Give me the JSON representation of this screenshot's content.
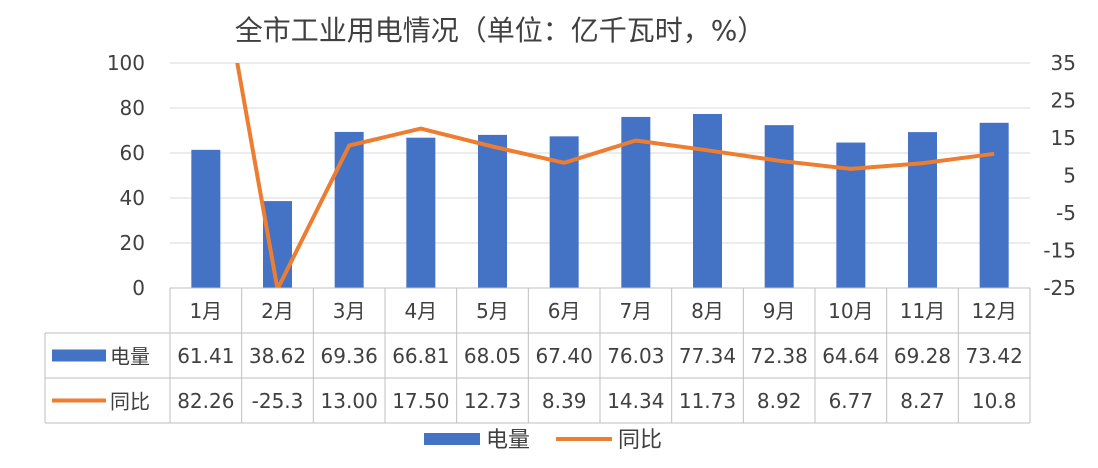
{
  "chart_data": {
    "type": "bar",
    "title": "全市工业用电情况（单位：亿千瓦时，%）",
    "categories": [
      "1月",
      "2月",
      "3月",
      "4月",
      "5月",
      "6月",
      "7月",
      "8月",
      "9月",
      "10月",
      "11月",
      "12月"
    ],
    "series": [
      {
        "name": "电量",
        "type": "bar",
        "axis": "left",
        "color": "#4472C4",
        "values": [
          61.41,
          38.62,
          69.36,
          66.81,
          68.05,
          67.4,
          76.03,
          77.34,
          72.38,
          64.64,
          69.28,
          73.42
        ],
        "labels": [
          "61.41",
          "38.62",
          "69.36",
          "66.81",
          "68.05",
          "67.40",
          "76.03",
          "77.34",
          "72.38",
          "64.64",
          "69.28",
          "73.42"
        ]
      },
      {
        "name": "同比",
        "type": "line",
        "axis": "right",
        "color": "#ED7D31",
        "values": [
          82.26,
          -25.3,
          13.0,
          17.5,
          12.73,
          8.39,
          14.34,
          11.73,
          8.92,
          6.77,
          8.27,
          10.8
        ],
        "labels": [
          "82.26",
          "-25.3",
          "13.00",
          "17.50",
          "12.73",
          "8.39",
          "14.34",
          "11.73",
          "8.92",
          "6.77",
          "8.27",
          "10.8"
        ]
      }
    ],
    "y_left": {
      "min": 0,
      "max": 100,
      "ticks": [
        "0",
        "20",
        "40",
        "60",
        "80",
        "100"
      ]
    },
    "y_right": {
      "min": -25,
      "max": 35,
      "ticks": [
        "-25",
        "-15",
        "-5",
        "5",
        "15",
        "25",
        "35"
      ]
    },
    "grid": true,
    "legend": "bottom",
    "data_table": true
  }
}
